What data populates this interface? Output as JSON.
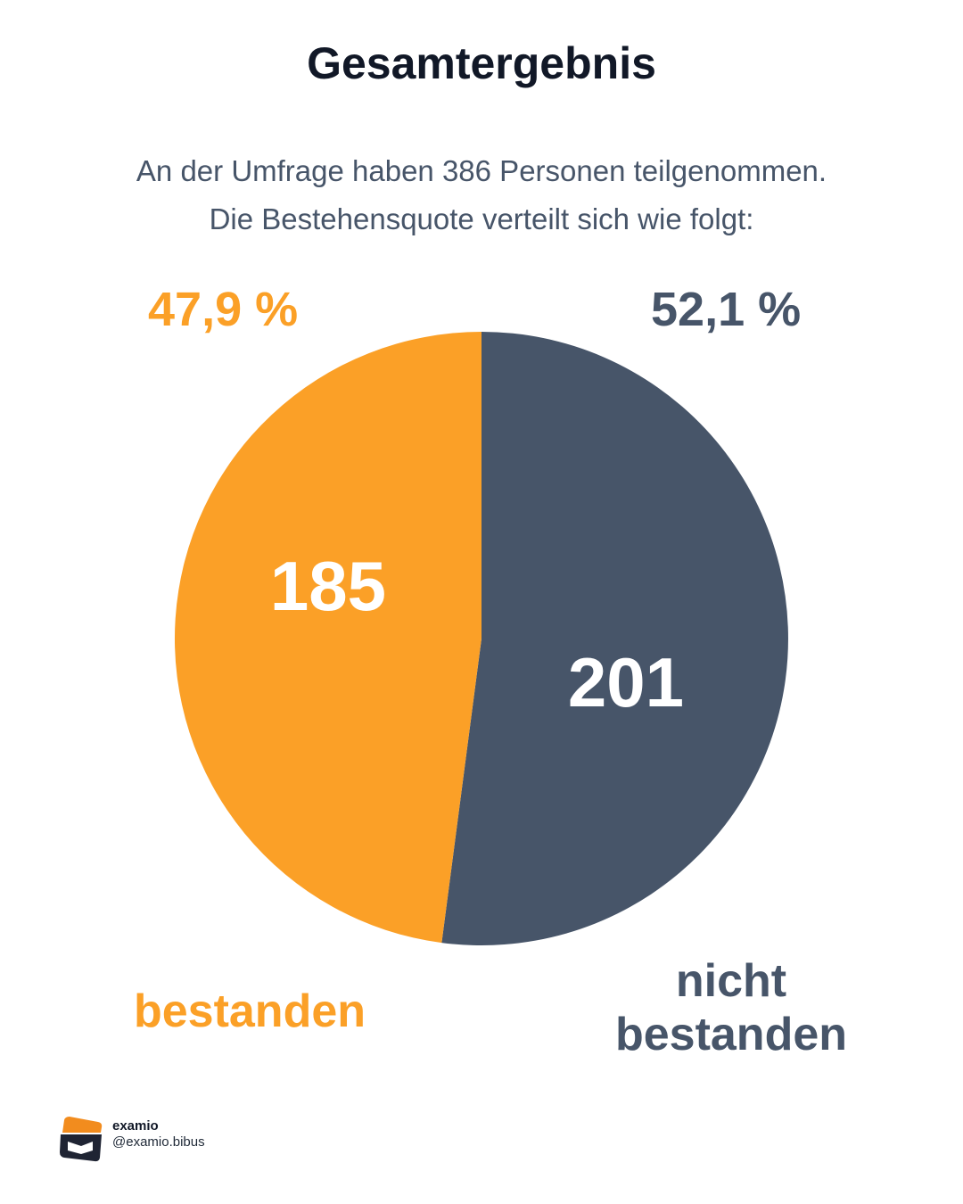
{
  "header": {
    "title": "Gesamtergebnis",
    "subtitle_line1": "An der Umfrage haben 386 Personen teilgenommen.",
    "subtitle_line2": "Die Bestehensquote verteilt sich wie folgt:"
  },
  "chart_data": {
    "type": "pie",
    "title": "Gesamtergebnis",
    "total": 386,
    "slices": [
      {
        "name": "nicht bestanden",
        "label_line1": "nicht",
        "label_line2": "bestanden",
        "value": 201,
        "value_label": "201",
        "percent": 52.1,
        "percent_label": "52,1 %",
        "color": "#475569"
      },
      {
        "name": "bestanden",
        "label_line1": "bestanden",
        "value": 185,
        "value_label": "185",
        "percent": 47.9,
        "percent_label": "47,9 %",
        "color": "#FBA027"
      }
    ],
    "start_angle_deg": 0,
    "direction": "clockwise"
  },
  "brand": {
    "name": "examio",
    "handle": "@examio.bibus",
    "colors": {
      "accent": "#F28C1E",
      "dark": "#1F2433"
    }
  }
}
